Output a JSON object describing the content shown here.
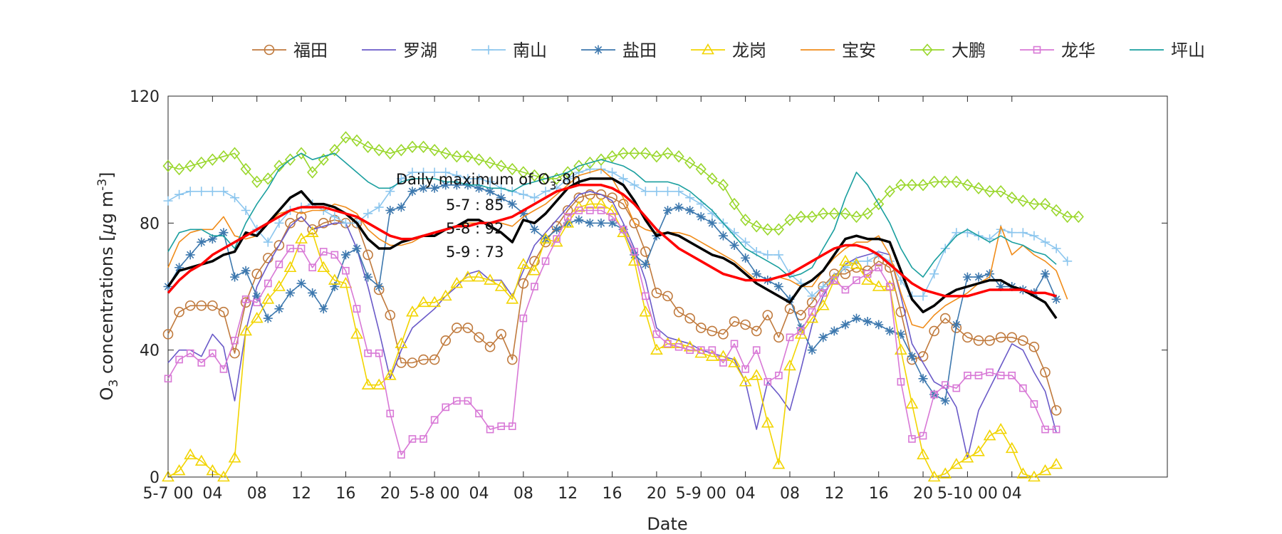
{
  "chart_data": {
    "type": "line",
    "xlabel": "Date",
    "ylabel_main": "O",
    "ylabel_sub": "3",
    "ylabel_rest": " concentrations [",
    "ylabel_mu": "μ",
    "ylabel_unit": "g m",
    "ylabel_sup": "-3",
    "ylabel_end": "]",
    "ylim": [
      0,
      120
    ],
    "xlim": [
      0,
      90
    ],
    "yticks": [
      0,
      40,
      80,
      120
    ],
    "xticks": [
      {
        "x": 0,
        "label": "5-7 00"
      },
      {
        "x": 4,
        "label": "04"
      },
      {
        "x": 8,
        "label": "08"
      },
      {
        "x": 12,
        "label": "12"
      },
      {
        "x": 16,
        "label": "16"
      },
      {
        "x": 20,
        "label": "20"
      },
      {
        "x": 24,
        "label": "5-8 00"
      },
      {
        "x": 28,
        "label": "04"
      },
      {
        "x": 32,
        "label": "08"
      },
      {
        "x": 36,
        "label": "12"
      },
      {
        "x": 40,
        "label": "16"
      },
      {
        "x": 44,
        "label": "20"
      },
      {
        "x": 48,
        "label": "5-9 00"
      },
      {
        "x": 52,
        "label": "04"
      },
      {
        "x": 56,
        "label": "08"
      },
      {
        "x": 60,
        "label": "12"
      },
      {
        "x": 64,
        "label": "16"
      },
      {
        "x": 68,
        "label": "20"
      },
      {
        "x": 72,
        "label": "5-10 00"
      },
      {
        "x": 76,
        "label": "04"
      }
    ],
    "grid": false,
    "legend": "top-center",
    "annotation": {
      "title_main": "Daily maximum of O",
      "title_sub": "3",
      "title_end": "-8h",
      "lines": [
        "5-7 : 85",
        "5-8 : 92",
        "5-9 : 73"
      ]
    },
    "series": [
      {
        "name": "福田",
        "color": "#C07A3D",
        "marker": "circle",
        "values": [
          45,
          52,
          54,
          54,
          54,
          52,
          39,
          55,
          64,
          69,
          73,
          80,
          82,
          78,
          80,
          81,
          80,
          80,
          70,
          59,
          51,
          36,
          36,
          37,
          37,
          43,
          47,
          47,
          44,
          41,
          45,
          37,
          61,
          68,
          74,
          79,
          84,
          88,
          89,
          89,
          88,
          86,
          80,
          71,
          58,
          57,
          52,
          50,
          47,
          46,
          45,
          49,
          48,
          46,
          51,
          44,
          53,
          51,
          55,
          60,
          64,
          64,
          66,
          65,
          68,
          66,
          52,
          37,
          38,
          46,
          50,
          47,
          44,
          43,
          43,
          44,
          44,
          43,
          41,
          33,
          21
        ]
      },
      {
        "name": "罗湖",
        "color": "#6A5AC8",
        "marker": "none",
        "values": [
          36,
          40,
          40,
          38,
          45,
          41,
          24,
          46,
          60,
          67,
          73,
          79,
          82,
          78,
          79,
          80,
          80,
          72,
          60,
          46,
          31,
          40,
          47,
          50,
          53,
          57,
          60,
          64,
          65,
          62,
          62,
          57,
          65,
          73,
          77,
          81,
          85,
          89,
          90,
          89,
          87,
          80,
          72,
          62,
          47,
          44,
          43,
          42,
          40,
          39,
          38,
          37,
          30,
          15,
          30,
          26,
          21,
          34,
          48,
          57,
          63,
          67,
          69,
          70,
          71,
          70,
          57,
          42,
          36,
          30,
          28,
          22,
          6,
          21,
          28,
          35,
          42,
          40,
          33,
          27,
          14
        ]
      },
      {
        "name": "南山",
        "color": "#8CC6EE",
        "marker": "plus",
        "values": [
          87,
          89,
          90,
          90,
          90,
          90,
          88,
          84,
          78,
          74,
          80,
          84,
          85,
          86,
          84,
          82,
          80,
          80,
          83,
          85,
          90,
          94,
          96,
          96,
          96,
          96,
          95,
          94,
          94,
          93,
          91,
          90,
          89,
          88,
          90,
          91,
          94,
          96,
          97,
          97,
          96,
          94,
          92,
          90,
          90,
          90,
          90,
          88,
          86,
          83,
          80,
          77,
          74,
          71,
          70,
          70,
          64,
          61,
          57,
          60,
          63,
          66,
          68,
          68,
          70,
          68,
          62,
          57,
          57,
          64,
          72,
          77,
          77,
          76,
          75,
          78,
          77,
          77,
          76,
          74,
          72,
          68
        ]
      },
      {
        "name": "盐田",
        "color": "#3D78AE",
        "marker": "asterisk",
        "values": [
          60,
          66,
          70,
          74,
          75,
          77,
          63,
          65,
          57,
          50,
          53,
          58,
          61,
          58,
          53,
          60,
          70,
          72,
          63,
          60,
          84,
          85,
          90,
          91,
          91,
          92,
          92,
          92,
          91,
          90,
          88,
          86,
          83,
          78,
          75,
          78,
          80,
          81,
          80,
          80,
          80,
          78,
          70,
          67,
          76,
          84,
          85,
          84,
          82,
          80,
          76,
          73,
          69,
          64,
          62,
          60,
          56,
          47,
          40,
          44,
          46,
          48,
          50,
          49,
          48,
          46,
          45,
          38,
          31,
          26,
          24,
          48,
          63,
          63,
          64,
          60,
          60,
          59,
          58,
          64,
          56
        ]
      },
      {
        "name": "龙岗",
        "color": "#F2D400",
        "marker": "triangle",
        "values": [
          0,
          2,
          7,
          5,
          2,
          0,
          6,
          46,
          50,
          56,
          60,
          66,
          75,
          77,
          66,
          62,
          61,
          45,
          29,
          29,
          32,
          42,
          52,
          55,
          55,
          57,
          61,
          63,
          63,
          62,
          60,
          56,
          67,
          65,
          75,
          74,
          80,
          85,
          86,
          86,
          84,
          77,
          68,
          52,
          40,
          42,
          42,
          41,
          39,
          38,
          38,
          36,
          30,
          32,
          17,
          4,
          35,
          45,
          50,
          54,
          62,
          68,
          67,
          62,
          60,
          60,
          40,
          23,
          7,
          0,
          1,
          4,
          6,
          8,
          13,
          15,
          9,
          1,
          0,
          2,
          4
        ]
      },
      {
        "name": "宝安",
        "color": "#F08C1A",
        "marker": "none",
        "values": [
          66,
          74,
          77,
          78,
          78,
          82,
          76,
          75,
          76,
          80,
          83,
          84,
          83,
          84,
          84,
          86,
          85,
          83,
          78,
          75,
          73,
          73,
          74,
          76,
          76,
          78,
          79,
          80,
          80,
          80,
          80,
          79,
          82,
          84,
          86,
          89,
          92,
          95,
          96,
          97,
          94,
          88,
          80,
          78,
          77,
          77,
          77,
          76,
          74,
          72,
          70,
          68,
          65,
          62,
          62,
          63,
          62,
          60,
          60,
          65,
          69,
          72,
          74,
          74,
          76,
          70,
          58,
          48,
          47,
          51,
          54,
          56,
          58,
          61,
          63,
          79,
          70,
          73,
          70,
          68,
          65,
          56
        ]
      },
      {
        "name": "大鹏",
        "color": "#9AD72C",
        "marker": "diamond",
        "values": [
          98,
          97,
          98,
          99,
          100,
          101,
          102,
          97,
          93,
          94,
          98,
          100,
          102,
          96,
          100,
          103,
          107,
          106,
          104,
          103,
          102,
          103,
          104,
          104,
          103,
          102,
          101,
          101,
          100,
          99,
          98,
          97,
          96,
          95,
          94,
          94,
          96,
          98,
          99,
          100,
          101,
          102,
          102,
          102,
          101,
          102,
          101,
          99,
          97,
          94,
          92,
          86,
          81,
          79,
          78,
          78,
          81,
          82,
          82,
          83,
          83,
          83,
          82,
          83,
          86,
          90,
          92,
          92,
          92,
          93,
          93,
          93,
          92,
          91,
          90,
          90,
          88,
          87,
          86,
          86,
          84,
          82,
          82
        ]
      },
      {
        "name": "龙华",
        "color": "#D878D6",
        "marker": "square",
        "values": [
          31,
          37,
          39,
          36,
          39,
          34,
          43,
          56,
          55,
          61,
          67,
          72,
          72,
          66,
          71,
          70,
          65,
          53,
          39,
          39,
          20,
          7,
          12,
          12,
          18,
          22,
          24,
          24,
          20,
          15,
          16,
          16,
          50,
          60,
          68,
          75,
          82,
          84,
          84,
          84,
          82,
          78,
          71,
          57,
          45,
          42,
          41,
          40,
          40,
          40,
          36,
          42,
          34,
          40,
          30,
          32,
          44,
          46,
          52,
          58,
          62,
          59,
          62,
          64,
          66,
          60,
          30,
          12,
          13,
          26,
          29,
          28,
          32,
          32,
          33,
          32,
          32,
          28,
          23,
          15,
          15
        ]
      },
      {
        "name": "坪山",
        "color": "#1A9F9F",
        "marker": "none",
        "values": [
          71,
          77,
          78,
          78,
          76,
          76,
          72,
          80,
          86,
          91,
          97,
          100,
          102,
          100,
          101,
          102,
          99,
          96,
          93,
          91,
          91,
          93,
          94,
          94,
          94,
          93,
          93,
          92,
          92,
          91,
          91,
          90,
          92,
          93,
          94,
          95,
          96,
          98,
          99,
          100,
          99,
          98,
          96,
          93,
          93,
          93,
          92,
          90,
          87,
          84,
          80,
          76,
          72,
          70,
          68,
          66,
          63,
          64,
          66,
          72,
          78,
          88,
          96,
          92,
          86,
          80,
          72,
          66,
          63,
          68,
          72,
          76,
          78,
          76,
          74,
          76,
          74,
          73,
          71,
          70,
          67
        ]
      },
      {
        "name": "",
        "color": "#000000",
        "marker": "none",
        "width": 3.5,
        "values": [
          60,
          65,
          66,
          67,
          68,
          70,
          71,
          77,
          76,
          80,
          84,
          88,
          90,
          86,
          86,
          85,
          83,
          80,
          75,
          72,
          72,
          74,
          75,
          76,
          76,
          78,
          79,
          81,
          81,
          79,
          77,
          74,
          81,
          80,
          83,
          87,
          91,
          93,
          94,
          94,
          94,
          92,
          87,
          81,
          76,
          77,
          76,
          74,
          72,
          70,
          69,
          67,
          64,
          61,
          59,
          57,
          55,
          60,
          62,
          65,
          70,
          75,
          76,
          75,
          75,
          74,
          65,
          56,
          52,
          54,
          57,
          59,
          60,
          61,
          62,
          62,
          60,
          59,
          57,
          55,
          50
        ]
      },
      {
        "name": "",
        "color": "#FF0000",
        "marker": "none",
        "width": 3.5,
        "smooth": true,
        "values": [
          58,
          62,
          65,
          67,
          70,
          72,
          74,
          76,
          78,
          80,
          82,
          84,
          85,
          85,
          85,
          84,
          83,
          82,
          80,
          78,
          76,
          75,
          75,
          76,
          77,
          78,
          79,
          79,
          80,
          80,
          81,
          82,
          84,
          86,
          88,
          90,
          91,
          92,
          92,
          92,
          91,
          89,
          86,
          82,
          78,
          75,
          72,
          70,
          68,
          66,
          64,
          63,
          62,
          62,
          62,
          63,
          64,
          66,
          68,
          70,
          72,
          73,
          73,
          72,
          70,
          67,
          64,
          61,
          59,
          58,
          57,
          57,
          57,
          58,
          59,
          59,
          59,
          59,
          58,
          58,
          57
        ]
      }
    ]
  }
}
